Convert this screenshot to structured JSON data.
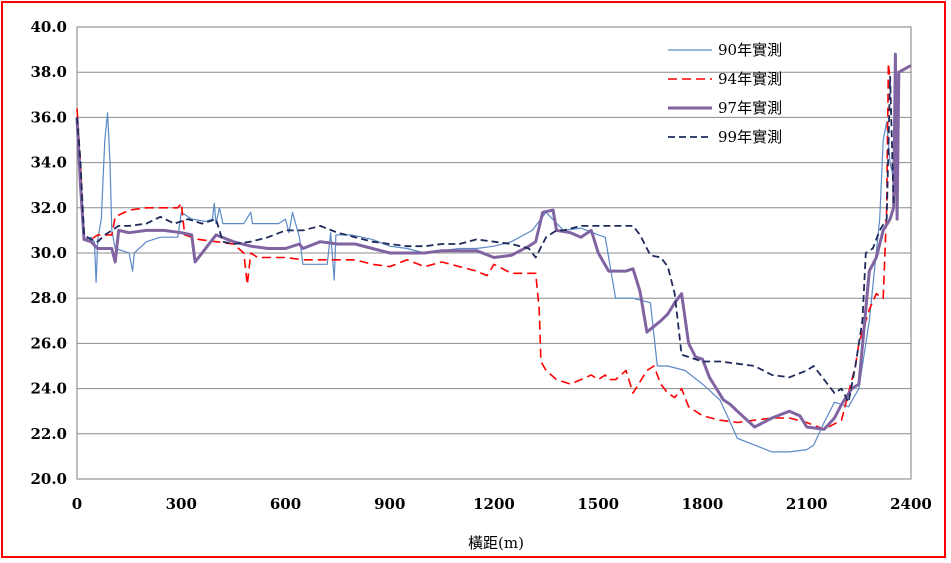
{
  "chart_data": {
    "type": "line",
    "title": "",
    "xlabel": "橫距(m)",
    "ylabel": "",
    "xlim": [
      0,
      2400
    ],
    "ylim": [
      20,
      40
    ],
    "x_ticks": [
      0,
      300,
      600,
      900,
      1200,
      1500,
      1800,
      2100,
      2400
    ],
    "x_tick_labels": [
      "0",
      "300",
      "600",
      "900",
      "1200",
      "1500",
      "1800",
      "2100",
      "2400"
    ],
    "y_ticks": [
      20,
      22,
      24,
      26,
      28,
      30,
      32,
      34,
      36,
      38,
      40
    ],
    "y_tick_labels": [
      "20.0",
      "22.0",
      "24.0",
      "26.0",
      "28.0",
      "30.0",
      "32.0",
      "34.0",
      "36.0",
      "38.0",
      "40.0"
    ],
    "grid": "horizontal",
    "legend_position": "top-right",
    "series": [
      {
        "name": "90年實測",
        "color": "#5b8ac6",
        "style": "solid",
        "width": 1.2,
        "points": [
          [
            0,
            35.8
          ],
          [
            10,
            33.0
          ],
          [
            20,
            30.6
          ],
          [
            40,
            30.7
          ],
          [
            50,
            30.5
          ],
          [
            55,
            28.7
          ],
          [
            60,
            30.6
          ],
          [
            70,
            31.5
          ],
          [
            80,
            35.0
          ],
          [
            88,
            36.2
          ],
          [
            95,
            34.0
          ],
          [
            100,
            31.0
          ],
          [
            110,
            30.2
          ],
          [
            150,
            30.0
          ],
          [
            160,
            29.2
          ],
          [
            165,
            30.0
          ],
          [
            200,
            30.5
          ],
          [
            240,
            30.7
          ],
          [
            290,
            30.7
          ],
          [
            300,
            31.8
          ],
          [
            330,
            31.5
          ],
          [
            370,
            31.4
          ],
          [
            390,
            31.5
          ],
          [
            395,
            32.2
          ],
          [
            400,
            31.3
          ],
          [
            410,
            32.0
          ],
          [
            420,
            31.3
          ],
          [
            480,
            31.3
          ],
          [
            500,
            31.8
          ],
          [
            505,
            31.3
          ],
          [
            560,
            31.3
          ],
          [
            580,
            31.3
          ],
          [
            600,
            31.5
          ],
          [
            610,
            30.9
          ],
          [
            620,
            31.8
          ],
          [
            640,
            30.7
          ],
          [
            650,
            29.5
          ],
          [
            720,
            29.5
          ],
          [
            730,
            30.9
          ],
          [
            740,
            28.8
          ],
          [
            745,
            30.8
          ],
          [
            790,
            30.8
          ],
          [
            850,
            30.6
          ],
          [
            900,
            30.3
          ],
          [
            950,
            30.2
          ],
          [
            1000,
            30.0
          ],
          [
            1100,
            30.2
          ],
          [
            1150,
            30.2
          ],
          [
            1200,
            30.3
          ],
          [
            1250,
            30.5
          ],
          [
            1310,
            31.0
          ],
          [
            1350,
            31.8
          ],
          [
            1400,
            31.0
          ],
          [
            1450,
            31.1
          ],
          [
            1500,
            30.8
          ],
          [
            1520,
            30.7
          ],
          [
            1550,
            28.0
          ],
          [
            1600,
            28.0
          ],
          [
            1650,
            27.8
          ],
          [
            1670,
            25.0
          ],
          [
            1700,
            25.0
          ],
          [
            1750,
            24.8
          ],
          [
            1800,
            24.2
          ],
          [
            1850,
            23.5
          ],
          [
            1880,
            22.5
          ],
          [
            1900,
            21.8
          ],
          [
            1950,
            21.5
          ],
          [
            2000,
            21.2
          ],
          [
            2050,
            21.2
          ],
          [
            2100,
            21.3
          ],
          [
            2120,
            21.5
          ],
          [
            2150,
            22.5
          ],
          [
            2180,
            23.4
          ],
          [
            2220,
            23.2
          ],
          [
            2250,
            24.0
          ],
          [
            2280,
            27.0
          ],
          [
            2310,
            31.5
          ],
          [
            2320,
            35.0
          ],
          [
            2330,
            35.8
          ],
          [
            2340,
            34.0
          ],
          [
            2360,
            32.5
          ]
        ]
      },
      {
        "name": "94年實測",
        "color": "#ff0000",
        "style": "dashed",
        "width": 1.6,
        "points": [
          [
            0,
            36.4
          ],
          [
            10,
            34.0
          ],
          [
            20,
            30.6
          ],
          [
            40,
            30.6
          ],
          [
            60,
            30.8
          ],
          [
            80,
            30.8
          ],
          [
            100,
            30.8
          ],
          [
            110,
            31.6
          ],
          [
            150,
            31.9
          ],
          [
            200,
            32.0
          ],
          [
            250,
            32.0
          ],
          [
            290,
            32.0
          ],
          [
            300,
            32.2
          ],
          [
            310,
            30.8
          ],
          [
            350,
            30.6
          ],
          [
            400,
            30.5
          ],
          [
            450,
            30.4
          ],
          [
            480,
            30.0
          ],
          [
            490,
            28.6
          ],
          [
            500,
            30.0
          ],
          [
            520,
            29.8
          ],
          [
            560,
            29.8
          ],
          [
            600,
            29.8
          ],
          [
            650,
            29.7
          ],
          [
            700,
            29.7
          ],
          [
            750,
            29.7
          ],
          [
            800,
            29.7
          ],
          [
            850,
            29.5
          ],
          [
            900,
            29.4
          ],
          [
            950,
            29.7
          ],
          [
            1000,
            29.4
          ],
          [
            1050,
            29.6
          ],
          [
            1100,
            29.4
          ],
          [
            1150,
            29.2
          ],
          [
            1180,
            29.0
          ],
          [
            1200,
            29.5
          ],
          [
            1250,
            29.1
          ],
          [
            1300,
            29.1
          ],
          [
            1320,
            29.1
          ],
          [
            1330,
            27.5
          ],
          [
            1335,
            25.2
          ],
          [
            1350,
            24.8
          ],
          [
            1380,
            24.4
          ],
          [
            1420,
            24.2
          ],
          [
            1450,
            24.4
          ],
          [
            1480,
            24.6
          ],
          [
            1500,
            24.4
          ],
          [
            1520,
            24.6
          ],
          [
            1530,
            24.4
          ],
          [
            1550,
            24.4
          ],
          [
            1580,
            24.8
          ],
          [
            1600,
            23.8
          ],
          [
            1620,
            24.3
          ],
          [
            1640,
            24.8
          ],
          [
            1660,
            25.0
          ],
          [
            1680,
            24.2
          ],
          [
            1700,
            23.8
          ],
          [
            1720,
            23.6
          ],
          [
            1740,
            24.0
          ],
          [
            1760,
            23.2
          ],
          [
            1780,
            23.0
          ],
          [
            1800,
            22.8
          ],
          [
            1850,
            22.6
          ],
          [
            1900,
            22.5
          ],
          [
            1950,
            22.6
          ],
          [
            2000,
            22.7
          ],
          [
            2050,
            22.7
          ],
          [
            2100,
            22.5
          ],
          [
            2150,
            22.2
          ],
          [
            2200,
            22.6
          ],
          [
            2240,
            25.0
          ],
          [
            2250,
            26.0
          ],
          [
            2280,
            27.5
          ],
          [
            2300,
            28.2
          ],
          [
            2320,
            28.0
          ],
          [
            2330,
            32.0
          ],
          [
            2335,
            38.4
          ],
          [
            2340,
            37.6
          ]
        ]
      },
      {
        "name": "97年實測",
        "color": "#8064a2",
        "style": "solid",
        "width": 3,
        "points": [
          [
            0,
            36.0
          ],
          [
            10,
            33.0
          ],
          [
            20,
            30.6
          ],
          [
            40,
            30.5
          ],
          [
            60,
            30.2
          ],
          [
            80,
            30.2
          ],
          [
            100,
            30.2
          ],
          [
            110,
            29.6
          ],
          [
            120,
            31.0
          ],
          [
            150,
            30.9
          ],
          [
            200,
            31.0
          ],
          [
            250,
            31.0
          ],
          [
            300,
            30.9
          ],
          [
            330,
            30.8
          ],
          [
            340,
            29.6
          ],
          [
            360,
            30.0
          ],
          [
            400,
            30.8
          ],
          [
            450,
            30.5
          ],
          [
            500,
            30.3
          ],
          [
            550,
            30.2
          ],
          [
            600,
            30.2
          ],
          [
            640,
            30.4
          ],
          [
            650,
            30.2
          ],
          [
            700,
            30.5
          ],
          [
            750,
            30.4
          ],
          [
            800,
            30.4
          ],
          [
            850,
            30.2
          ],
          [
            900,
            30.0
          ],
          [
            950,
            30.0
          ],
          [
            1000,
            30.0
          ],
          [
            1050,
            30.1
          ],
          [
            1100,
            30.1
          ],
          [
            1150,
            30.1
          ],
          [
            1200,
            29.8
          ],
          [
            1250,
            29.9
          ],
          [
            1300,
            30.3
          ],
          [
            1320,
            30.5
          ],
          [
            1340,
            31.8
          ],
          [
            1370,
            31.9
          ],
          [
            1380,
            31.0
          ],
          [
            1420,
            30.9
          ],
          [
            1450,
            30.7
          ],
          [
            1480,
            31.0
          ],
          [
            1500,
            30.0
          ],
          [
            1530,
            29.2
          ],
          [
            1550,
            29.2
          ],
          [
            1580,
            29.2
          ],
          [
            1600,
            29.3
          ],
          [
            1620,
            28.3
          ],
          [
            1640,
            26.5
          ],
          [
            1680,
            27.0
          ],
          [
            1700,
            27.3
          ],
          [
            1720,
            27.8
          ],
          [
            1740,
            28.2
          ],
          [
            1760,
            26.0
          ],
          [
            1780,
            25.4
          ],
          [
            1800,
            25.3
          ],
          [
            1820,
            24.5
          ],
          [
            1840,
            24.0
          ],
          [
            1860,
            23.5
          ],
          [
            1880,
            23.3
          ],
          [
            1900,
            23.0
          ],
          [
            1950,
            22.3
          ],
          [
            2000,
            22.7
          ],
          [
            2050,
            23.0
          ],
          [
            2080,
            22.8
          ],
          [
            2100,
            22.3
          ],
          [
            2150,
            22.2
          ],
          [
            2180,
            22.7
          ],
          [
            2200,
            23.3
          ],
          [
            2230,
            24.0
          ],
          [
            2250,
            24.2
          ],
          [
            2280,
            29.2
          ],
          [
            2300,
            29.8
          ],
          [
            2320,
            31.0
          ],
          [
            2340,
            31.5
          ],
          [
            2350,
            32.0
          ],
          [
            2355,
            38.8
          ],
          [
            2360,
            31.5
          ],
          [
            2365,
            38.0
          ],
          [
            2400,
            38.3
          ]
        ]
      },
      {
        "name": "99年實測",
        "color": "#1f2a5c",
        "style": "dashed",
        "width": 1.8,
        "points": [
          [
            0,
            36.0
          ],
          [
            10,
            34.0
          ],
          [
            20,
            30.8
          ],
          [
            40,
            30.6
          ],
          [
            60,
            30.5
          ],
          [
            80,
            30.8
          ],
          [
            100,
            31.0
          ],
          [
            120,
            31.2
          ],
          [
            150,
            31.2
          ],
          [
            200,
            31.3
          ],
          [
            240,
            31.6
          ],
          [
            280,
            31.3
          ],
          [
            320,
            31.5
          ],
          [
            360,
            31.3
          ],
          [
            400,
            31.5
          ],
          [
            420,
            30.5
          ],
          [
            450,
            30.4
          ],
          [
            500,
            30.5
          ],
          [
            550,
            30.7
          ],
          [
            600,
            31.0
          ],
          [
            650,
            31.0
          ],
          [
            700,
            31.2
          ],
          [
            750,
            30.9
          ],
          [
            800,
            30.7
          ],
          [
            850,
            30.5
          ],
          [
            900,
            30.4
          ],
          [
            950,
            30.3
          ],
          [
            1000,
            30.3
          ],
          [
            1050,
            30.4
          ],
          [
            1100,
            30.4
          ],
          [
            1150,
            30.6
          ],
          [
            1200,
            30.5
          ],
          [
            1250,
            30.4
          ],
          [
            1300,
            30.2
          ],
          [
            1320,
            29.8
          ],
          [
            1350,
            30.7
          ],
          [
            1380,
            31.0
          ],
          [
            1400,
            31.0
          ],
          [
            1450,
            31.2
          ],
          [
            1500,
            31.2
          ],
          [
            1550,
            31.2
          ],
          [
            1600,
            31.2
          ],
          [
            1620,
            30.8
          ],
          [
            1650,
            29.9
          ],
          [
            1680,
            29.8
          ],
          [
            1700,
            29.4
          ],
          [
            1720,
            28.2
          ],
          [
            1740,
            25.5
          ],
          [
            1760,
            25.4
          ],
          [
            1800,
            25.2
          ],
          [
            1850,
            25.2
          ],
          [
            1900,
            25.1
          ],
          [
            1950,
            25.0
          ],
          [
            2000,
            24.6
          ],
          [
            2050,
            24.5
          ],
          [
            2100,
            24.8
          ],
          [
            2120,
            25.0
          ],
          [
            2150,
            24.4
          ],
          [
            2180,
            23.8
          ],
          [
            2200,
            24.0
          ],
          [
            2220,
            23.4
          ],
          [
            2240,
            25.0
          ],
          [
            2260,
            27.0
          ],
          [
            2270,
            30.0
          ],
          [
            2290,
            30.2
          ],
          [
            2310,
            31.0
          ],
          [
            2330,
            31.5
          ],
          [
            2340,
            37.8
          ],
          [
            2350,
            32.2
          ]
        ]
      }
    ]
  }
}
